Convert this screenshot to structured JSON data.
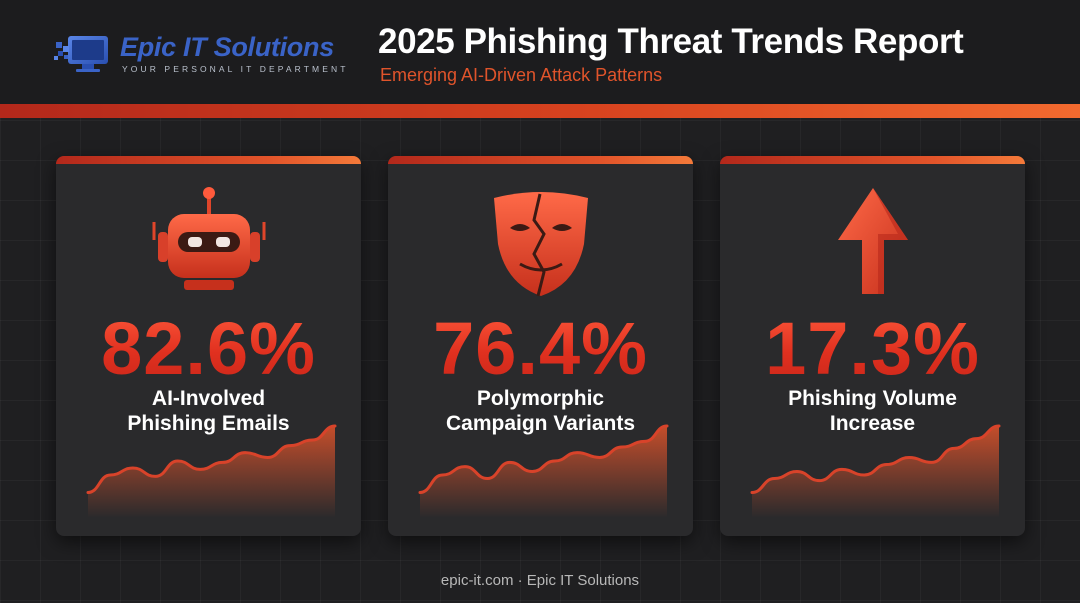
{
  "brand": {
    "name": "Epic IT Solutions",
    "tagline": "YOUR PERSONAL IT DEPARTMENT"
  },
  "header": {
    "title": "2025 Phishing Threat Trends Report",
    "subtitle": "Emerging AI-Driven Attack Patterns"
  },
  "cards": [
    {
      "icon": "robot-icon",
      "value": "82.6%",
      "label_line1": "AI-Involved",
      "label_line2": "Phishing Emails",
      "trend": [
        0.05,
        0.3,
        0.4,
        0.28,
        0.5,
        0.38,
        0.48,
        0.62,
        0.55,
        0.72,
        0.8,
        1.0
      ]
    },
    {
      "icon": "mask-icon",
      "value": "76.4%",
      "label_line1": "Polymorphic",
      "label_line2": "Campaign Variants",
      "trend": [
        0.05,
        0.3,
        0.42,
        0.25,
        0.48,
        0.35,
        0.5,
        0.62,
        0.55,
        0.7,
        0.78,
        1.0
      ]
    },
    {
      "icon": "arrow-up-icon",
      "value": "17.3%",
      "label_line1": "Phishing Volume",
      "label_line2": "Increase",
      "trend": [
        0.05,
        0.25,
        0.35,
        0.22,
        0.38,
        0.3,
        0.45,
        0.55,
        0.48,
        0.68,
        0.82,
        1.0
      ]
    }
  ],
  "colors": {
    "accent": "#e0542b",
    "stat_red": "#e0301f",
    "brand_blue": "#3a63c7",
    "background": "#1f1f21",
    "card": "#2a2a2c"
  },
  "footer": {
    "text": "epic-it.com · Epic IT Solutions"
  }
}
